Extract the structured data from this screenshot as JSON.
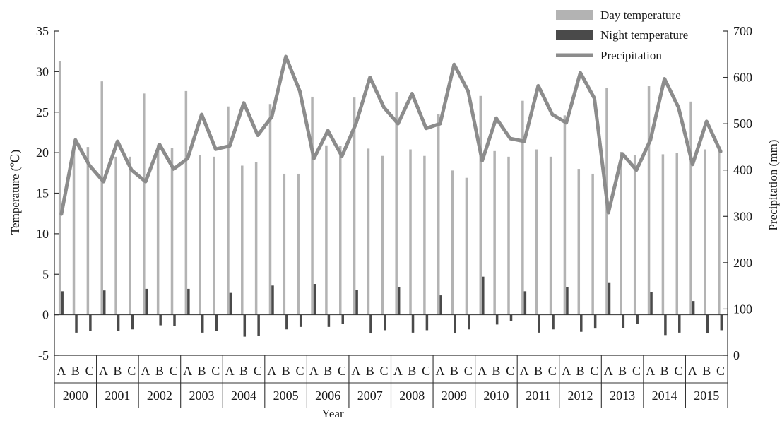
{
  "chart_data": {
    "type": "bar",
    "xlabel": "Year",
    "ylabel": "Temperature (℃)",
    "y2label": "Precipitation (mm)",
    "ylim": [
      -5,
      35
    ],
    "y2lim": [
      0,
      700
    ],
    "yticks": [
      -5,
      0,
      5,
      10,
      15,
      20,
      25,
      30,
      35
    ],
    "y2ticks": [
      0,
      100,
      200,
      300,
      400,
      500,
      600,
      700
    ],
    "grid": false,
    "legend_position": "top-right",
    "years": [
      "2000",
      "2001",
      "2002",
      "2003",
      "2004",
      "2005",
      "2006",
      "2007",
      "2008",
      "2009",
      "2010",
      "2011",
      "2012",
      "2013",
      "2014",
      "2015"
    ],
    "subcategories": [
      "A",
      "B",
      "C"
    ],
    "series": [
      {
        "name": "Day temperature",
        "type": "bar",
        "axis": "left",
        "color": "#b3b3b3",
        "values": [
          31.3,
          20.7,
          20.7,
          28.8,
          19.5,
          19.5,
          27.3,
          21.0,
          20.6,
          27.6,
          19.7,
          19.5,
          25.7,
          18.4,
          18.8,
          26.0,
          17.4,
          17.4,
          26.9,
          20.9,
          20.8,
          26.8,
          20.5,
          19.6,
          27.5,
          20.4,
          19.6,
          24.8,
          17.8,
          16.9,
          27.0,
          20.2,
          19.5,
          26.4,
          20.4,
          19.5,
          24.6,
          18.0,
          17.4,
          28.0,
          20.1,
          19.7,
          28.2,
          19.8,
          20.0,
          26.3,
          20.4,
          20.4
        ]
      },
      {
        "name": "Night temperature",
        "type": "bar",
        "axis": "left",
        "color": "#4a4a4a",
        "values": [
          2.9,
          -2.2,
          -2.0,
          3.0,
          -2.0,
          -1.8,
          3.2,
          -1.3,
          -1.4,
          3.2,
          -2.2,
          -2.0,
          2.7,
          -2.7,
          -2.6,
          3.6,
          -1.8,
          -1.5,
          3.8,
          -1.5,
          -1.1,
          3.1,
          -2.3,
          -1.9,
          3.4,
          -2.2,
          -1.9,
          2.4,
          -2.3,
          -1.8,
          4.7,
          -1.2,
          -0.8,
          2.9,
          -2.2,
          -1.8,
          3.4,
          -2.1,
          -1.7,
          4.0,
          -1.6,
          -1.1,
          2.8,
          -2.5,
          -2.2,
          1.7,
          -2.3,
          -1.9
        ]
      },
      {
        "name": "Precipitation",
        "type": "line",
        "axis": "right",
        "color": "#8c8c8c",
        "values": [
          305,
          465,
          410,
          375,
          462,
          400,
          375,
          455,
          402,
          425,
          520,
          445,
          452,
          545,
          475,
          515,
          645,
          570,
          425,
          485,
          430,
          500,
          600,
          535,
          500,
          565,
          490,
          500,
          628,
          570,
          420,
          512,
          468,
          462,
          582,
          520,
          502,
          610,
          555,
          308,
          435,
          400,
          465,
          597,
          535,
          412,
          505,
          440
        ]
      }
    ]
  }
}
